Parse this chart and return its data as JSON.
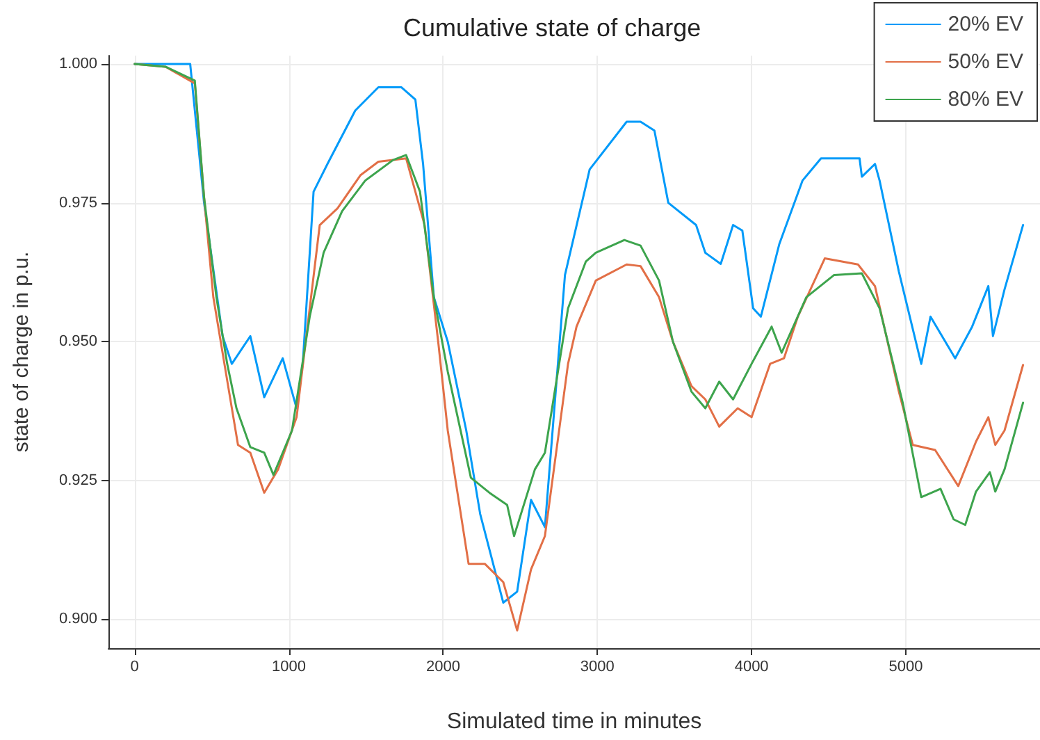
{
  "chart_data": {
    "type": "line",
    "title": "Cumulative state of charge",
    "xlabel": "Simulated time in minutes",
    "ylabel": "state of charge in p.u.",
    "xlim": [
      -170,
      5870
    ],
    "xticks": [
      0,
      1000,
      2000,
      3000,
      4000,
      5000
    ],
    "ylim": [
      0.8948,
      1.0015
    ],
    "yticks": [
      {
        "value": 0.9,
        "label": "0.900"
      },
      {
        "value": 0.925,
        "label": "0.925"
      },
      {
        "value": 0.95,
        "label": "0.950"
      },
      {
        "value": 0.975,
        "label": "0.975"
      },
      {
        "value": 1,
        "label": "1.000"
      }
    ],
    "grid": true,
    "legend": "top right",
    "line_style": "solid",
    "marker": "none",
    "series": [
      {
        "name": "20% EV",
        "color": "#009af9",
        "x": [
          0,
          200,
          360,
          450,
          570,
          630,
          750,
          840,
          960,
          1050,
          1090,
          1160,
          1250,
          1430,
          1580,
          1730,
          1820,
          1870,
          1940,
          2030,
          2150,
          2240,
          2390,
          2480,
          2570,
          2660,
          2790,
          2925,
          2950,
          3190,
          3280,
          3370,
          3460,
          3640,
          3700,
          3800,
          3880,
          3940,
          4010,
          4060,
          4180,
          4330,
          4450,
          4700,
          4715,
          4800,
          4830,
          4955,
          5100,
          5160,
          5320,
          5430,
          5535,
          5565,
          5640,
          5760
        ],
        "values": [
          1.0,
          1.0,
          1.0,
          0.975,
          0.951,
          0.946,
          0.951,
          0.94,
          0.947,
          0.938,
          0.946,
          0.977,
          0.982,
          0.9916,
          0.9958,
          0.9958,
          0.9936,
          0.982,
          0.958,
          0.95,
          0.934,
          0.919,
          0.903,
          0.905,
          0.9215,
          0.9166,
          0.962,
          0.978,
          0.981,
          0.9896,
          0.9896,
          0.988,
          0.975,
          0.971,
          0.966,
          0.964,
          0.971,
          0.97,
          0.956,
          0.9545,
          0.9676,
          0.979,
          0.983,
          0.983,
          0.9797,
          0.982,
          0.979,
          0.9626,
          0.946,
          0.9545,
          0.947,
          0.9527,
          0.96,
          0.951,
          0.9594,
          0.971
        ]
      },
      {
        "name": "50% EV",
        "color": "#e26f46",
        "x": [
          0,
          200,
          390,
          450,
          510,
          600,
          670,
          750,
          840,
          930,
          1050,
          1200,
          1315,
          1465,
          1580,
          1760,
          1880,
          1970,
          2030,
          2165,
          2270,
          2390,
          2480,
          2570,
          2660,
          2810,
          2865,
          2990,
          3190,
          3280,
          3400,
          3490,
          3610,
          3700,
          3790,
          3910,
          4000,
          4120,
          4210,
          4300,
          4475,
          4690,
          4800,
          4955,
          5045,
          5190,
          5340,
          5455,
          5535,
          5580,
          5640,
          5760
        ],
        "values": [
          1.0,
          0.9995,
          0.9965,
          0.976,
          0.958,
          0.943,
          0.9314,
          0.93,
          0.9228,
          0.927,
          0.9364,
          0.971,
          0.974,
          0.98,
          0.9824,
          0.983,
          0.971,
          0.9495,
          0.934,
          0.91,
          0.91,
          0.9067,
          0.898,
          0.909,
          0.915,
          0.946,
          0.9527,
          0.961,
          0.9639,
          0.9636,
          0.958,
          0.95,
          0.942,
          0.9396,
          0.9347,
          0.938,
          0.9364,
          0.946,
          0.947,
          0.9545,
          0.965,
          0.9639,
          0.96,
          0.941,
          0.9314,
          0.9305,
          0.924,
          0.932,
          0.9364,
          0.9314,
          0.934,
          0.9458
        ]
      },
      {
        "name": "80% EV",
        "color": "#3da44d",
        "x": [
          0,
          200,
          390,
          450,
          530,
          600,
          660,
          750,
          840,
          900,
          1020,
          1135,
          1225,
          1345,
          1495,
          1675,
          1760,
          1850,
          1940,
          2030,
          2180,
          2300,
          2415,
          2460,
          2595,
          2660,
          2810,
          2925,
          2990,
          3175,
          3280,
          3400,
          3490,
          3610,
          3700,
          3790,
          3880,
          4000,
          4130,
          4195,
          4355,
          4535,
          4715,
          4830,
          4980,
          5100,
          5225,
          5310,
          5385,
          5455,
          5545,
          5580,
          5640,
          5760
        ],
        "values": [
          1.0,
          0.9995,
          0.997,
          0.976,
          0.958,
          0.946,
          0.938,
          0.931,
          0.93,
          0.926,
          0.934,
          0.9545,
          0.966,
          0.9735,
          0.979,
          0.9827,
          0.9836,
          0.977,
          0.958,
          0.9446,
          0.9255,
          0.9228,
          0.9206,
          0.915,
          0.927,
          0.93,
          0.956,
          0.9644,
          0.966,
          0.9683,
          0.9673,
          0.961,
          0.95,
          0.941,
          0.938,
          0.9428,
          0.9396,
          0.946,
          0.9527,
          0.948,
          0.958,
          0.962,
          0.9623,
          0.956,
          0.939,
          0.922,
          0.9235,
          0.918,
          0.917,
          0.923,
          0.9265,
          0.923,
          0.927,
          0.939
        ]
      }
    ]
  }
}
